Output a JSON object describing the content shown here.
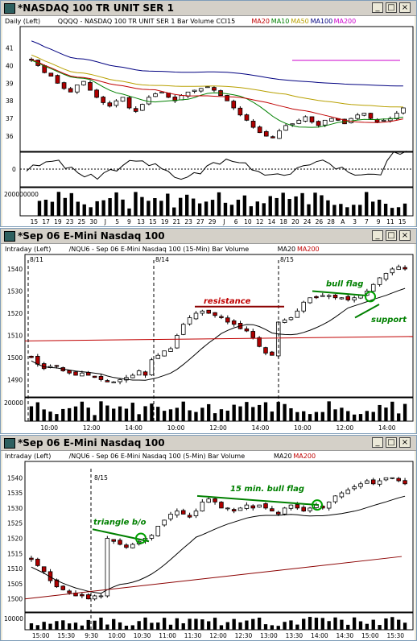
{
  "windows": [
    {
      "title": "*NASDAQ 100 TR UNIT SER 1",
      "legend": [
        {
          "text": "Daily  (Left)",
          "color": "#000000"
        },
        {
          "text": "QQQQ - NASDAQ 100 TR UNIT SER 1  Bar  Volume  CCI15",
          "color": "#000000"
        },
        {
          "text": "MA20",
          "color": "#c00000"
        },
        {
          "text": "MA10",
          "color": "#008000"
        },
        {
          "text": "MA50",
          "color": "#b8a000"
        },
        {
          "text": "MA100",
          "color": "#000080"
        },
        {
          "text": "MA200",
          "color": "#cc00cc"
        }
      ],
      "price_ticks": [
        "41",
        "40",
        "39",
        "38",
        "37",
        "36"
      ],
      "cci_ticks": [
        "0"
      ],
      "volume_ticks": [
        "200000000"
      ],
      "x_ticks": [
        "15",
        "17",
        "19",
        "23",
        "25",
        "30",
        "J",
        "5",
        "9",
        "13",
        "15",
        "19",
        "21",
        "23",
        "27",
        "29",
        "J",
        "6",
        "10",
        "12",
        "14",
        "18",
        "20",
        "24",
        "26",
        "28",
        "A",
        "3",
        "7",
        "9",
        "11",
        "15"
      ]
    },
    {
      "title": "*Sep 06  E-Mini Nasdaq 100",
      "legend": [
        {
          "text": "Intraday  (Left)",
          "color": "#000000"
        },
        {
          "text": "/NQU6 - Sep 06  E-Mini Nasdaq 100 (15-Min)  Bar  Volume",
          "color": "#000000"
        },
        {
          "text": "MA20",
          "color": "#000000"
        },
        {
          "text": "MA200",
          "color": "#c00000"
        }
      ],
      "date_marks": [
        "8/11",
        "8/14",
        "8/15"
      ],
      "annotations": [
        {
          "text": "resistance",
          "color": "#c00000"
        },
        {
          "text": "bull flag",
          "color": "#008000"
        },
        {
          "text": "support",
          "color": "#008000"
        }
      ],
      "price_ticks": [
        "1540",
        "1530",
        "1520",
        "1510",
        "1500",
        "1490"
      ],
      "volume_ticks": [
        "20000"
      ],
      "x_ticks": [
        "10:00",
        "12:00",
        "14:00",
        "10:00",
        "12:00",
        "14:00",
        "10:00",
        "12:00",
        "14:00"
      ]
    },
    {
      "title": "*Sep 06  E-Mini Nasdaq 100",
      "legend": [
        {
          "text": "Intraday  (Left)",
          "color": "#000000"
        },
        {
          "text": "/NQU6 - Sep 06  E-Mini Nasdaq 100 (5-Min)  Bar  Volume",
          "color": "#000000"
        },
        {
          "text": "MA20",
          "color": "#000000"
        },
        {
          "text": "MA200",
          "color": "#c00000"
        }
      ],
      "date_marks": [
        "8/15"
      ],
      "annotations": [
        {
          "text": "triangle b/o",
          "color": "#008000"
        },
        {
          "text": "15 min. bull flag",
          "color": "#008000"
        }
      ],
      "price_ticks": [
        "1540",
        "1535",
        "1530",
        "1525",
        "1520",
        "1515",
        "1510",
        "1505",
        "1500"
      ],
      "volume_ticks": [
        "10000"
      ],
      "x_ticks": [
        "15:00",
        "15:30",
        "9:30",
        "10:00",
        "10:30",
        "11:00",
        "11:30",
        "12:00",
        "12:30",
        "13:00",
        "13:30",
        "14:00",
        "14:30",
        "15:00",
        "15:30"
      ]
    }
  ],
  "chart_data": [
    {
      "type": "candlestick",
      "title": "*NASDAQ 100 TR UNIT SER 1",
      "series_labels": [
        "MA20",
        "MA10",
        "MA50",
        "MA100",
        "MA200"
      ],
      "ylim": [
        35.5,
        41.8
      ],
      "close_path": [
        40.3,
        40.0,
        39.6,
        39.4,
        39.0,
        38.7,
        38.5,
        38.9,
        39.1,
        38.6,
        38.2,
        37.9,
        37.7,
        38.0,
        38.2,
        37.6,
        37.4,
        37.8,
        38.2,
        38.4,
        38.5,
        38.2,
        38.0,
        38.3,
        38.5,
        38.6,
        38.7,
        38.8,
        38.6,
        38.3,
        38.0,
        37.6,
        37.2,
        36.9,
        36.5,
        36.2,
        36.0,
        35.9,
        36.3,
        36.6,
        36.7,
        36.9,
        37.1,
        36.8,
        36.6,
        36.9,
        37.0,
        36.9,
        36.7,
        37.0,
        37.2,
        37.3,
        37.0,
        36.8,
        36.9,
        37.0,
        37.3,
        37.6
      ]
    },
    {
      "type": "candlestick",
      "title": "*Sep 06  E-Mini Nasdaq 100",
      "timeframe": "15-Min",
      "series_labels": [
        "MA20",
        "MA200"
      ],
      "ylim": [
        1484,
        1544
      ],
      "close_path": [
        1500,
        1497,
        1495,
        1496,
        1496,
        1494,
        1493,
        1492,
        1493,
        1492,
        1491,
        1490,
        1489,
        1489,
        1490,
        1491,
        1492,
        1494,
        1492,
        1499,
        1501,
        1503,
        1504,
        1510,
        1515,
        1518,
        1520,
        1521,
        1520,
        1519,
        1518,
        1516,
        1515,
        1513,
        1512,
        1509,
        1505,
        1502,
        1501,
        1516,
        1517,
        1518,
        1521,
        1525,
        1527,
        1527,
        1528,
        1528,
        1527,
        1527,
        1526,
        1527,
        1528,
        1530,
        1533,
        1536,
        1538,
        1540,
        1541,
        1540
      ],
      "levels": [
        {
          "label": "resistance",
          "value": 1523
        }
      ]
    },
    {
      "type": "candlestick",
      "title": "*Sep 06  E-Mini Nasdaq 100",
      "timeframe": "5-Min",
      "series_labels": [
        "MA20",
        "MA200"
      ],
      "ylim": [
        1497,
        1543
      ],
      "close_path": [
        1513,
        1511,
        1509,
        1506,
        1504,
        1503,
        1502,
        1501,
        1501,
        1500,
        1501,
        1501,
        1520,
        1519,
        1518,
        1517,
        1518,
        1519,
        1520,
        1521,
        1524,
        1526,
        1528,
        1529,
        1528,
        1527,
        1529,
        1532,
        1533,
        1532,
        1530,
        1530,
        1529,
        1530,
        1531,
        1530,
        1531,
        1530,
        1529,
        1528,
        1530,
        1531,
        1530,
        1529,
        1530,
        1531,
        1530,
        1532,
        1534,
        1535,
        1536,
        1537,
        1538,
        1539,
        1538,
        1539,
        1540,
        1540,
        1539,
        1538
      ]
    }
  ]
}
